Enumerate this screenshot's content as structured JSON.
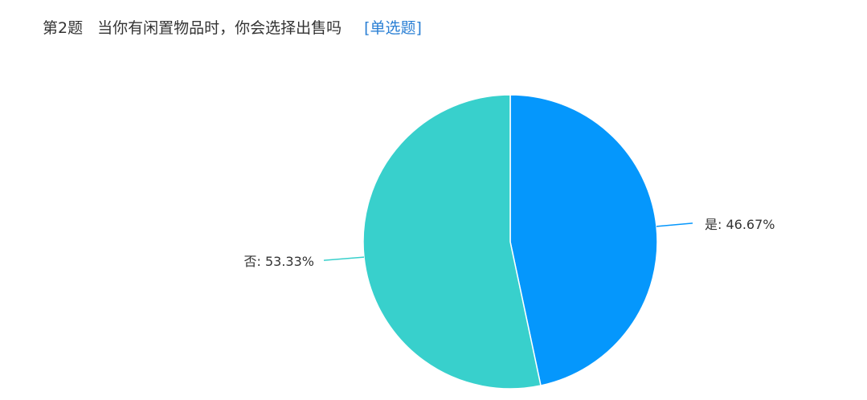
{
  "question": {
    "number": "第2题",
    "text": "当你有闲置物品时，你会选择出售吗",
    "type_tag": "[单选题]"
  },
  "chart_data": {
    "type": "pie",
    "start": "top",
    "direction": "clockwise",
    "slices": [
      {
        "label": "是",
        "value": 46.67,
        "display": "是: 46.67%",
        "color": "#0597fc"
      },
      {
        "label": "否",
        "value": 53.33,
        "display": "否: 53.33%",
        "color": "#38d0cc"
      }
    ]
  }
}
